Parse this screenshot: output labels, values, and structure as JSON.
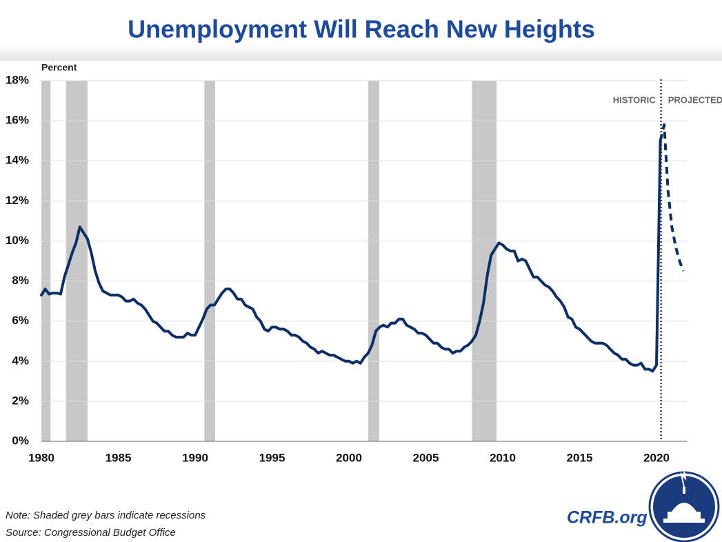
{
  "chart_data": {
    "type": "line",
    "title": "Unemployment Will Reach New Heights",
    "y_label": "Percent",
    "note": "Note: Shaded grey bars indicate recessions",
    "source": "Source: Congressional Budget Office",
    "brand": "CRFB.org",
    "xlim": [
      1980,
      2022
    ],
    "xticks": [
      1980,
      1985,
      1990,
      1995,
      2000,
      2005,
      2010,
      2015,
      2020
    ],
    "ylim": [
      0,
      18
    ],
    "yticks": [
      {
        "value": 0,
        "label": "0%"
      },
      {
        "value": 2,
        "label": "2%"
      },
      {
        "value": 4,
        "label": "4%"
      },
      {
        "value": 6,
        "label": "6%"
      },
      {
        "value": 8,
        "label": "8%"
      },
      {
        "value": 10,
        "label": "10%"
      },
      {
        "value": 12,
        "label": "12%"
      },
      {
        "value": 14,
        "label": "14%"
      },
      {
        "value": 16,
        "label": "16%"
      },
      {
        "value": 18,
        "label": "18%"
      }
    ],
    "grid": true,
    "divider": 2020.3,
    "recession_color": "#c8c8c8",
    "recessions": [
      [
        1980.0,
        1980.6
      ],
      [
        1981.6,
        1983.0
      ],
      [
        1990.6,
        1991.3
      ],
      [
        2001.25,
        2001.97
      ],
      [
        2008.0,
        2009.6
      ]
    ],
    "series": [
      {
        "name": "HISTORIC",
        "color": "#0b2f66",
        "dashed": false,
        "x": [
          1980,
          1980.25,
          1980.5,
          1980.75,
          1981,
          1981.25,
          1981.5,
          1981.75,
          1982,
          1982.25,
          1982.5,
          1982.75,
          1983,
          1983.25,
          1983.5,
          1983.75,
          1984,
          1984.25,
          1984.5,
          1984.75,
          1985,
          1985.25,
          1985.5,
          1985.75,
          1986,
          1986.25,
          1986.5,
          1986.75,
          1987,
          1987.25,
          1987.5,
          1987.75,
          1988,
          1988.25,
          1988.5,
          1988.75,
          1989,
          1989.25,
          1989.5,
          1989.75,
          1990,
          1990.25,
          1990.5,
          1990.75,
          1991,
          1991.25,
          1991.5,
          1991.75,
          1992,
          1992.25,
          1992.5,
          1992.75,
          1993,
          1993.25,
          1993.5,
          1993.75,
          1994,
          1994.25,
          1994.5,
          1994.75,
          1995,
          1995.25,
          1995.5,
          1995.75,
          1996,
          1996.25,
          1996.5,
          1996.75,
          1997,
          1997.25,
          1997.5,
          1997.75,
          1998,
          1998.25,
          1998.5,
          1998.75,
          1999,
          1999.25,
          1999.5,
          1999.75,
          2000,
          2000.25,
          2000.5,
          2000.75,
          2001,
          2001.25,
          2001.5,
          2001.75,
          2002,
          2002.25,
          2002.5,
          2002.75,
          2003,
          2003.25,
          2003.5,
          2003.75,
          2004,
          2004.25,
          2004.5,
          2004.75,
          2005,
          2005.25,
          2005.5,
          2005.75,
          2006,
          2006.25,
          2006.5,
          2006.75,
          2007,
          2007.25,
          2007.5,
          2007.75,
          2008,
          2008.25,
          2008.5,
          2008.75,
          2009,
          2009.25,
          2009.5,
          2009.75,
          2010,
          2010.25,
          2010.5,
          2010.75,
          2011,
          2011.25,
          2011.5,
          2011.75,
          2012,
          2012.25,
          2012.5,
          2012.75,
          2013,
          2013.25,
          2013.5,
          2013.75,
          2014,
          2014.25,
          2014.5,
          2014.75,
          2015,
          2015.25,
          2015.5,
          2015.75,
          2016,
          2016.25,
          2016.5,
          2016.75,
          2017,
          2017.25,
          2017.5,
          2017.75,
          2018,
          2018.25,
          2018.5,
          2018.75,
          2019,
          2019.25,
          2019.5,
          2019.75,
          2020,
          2020.25
        ],
        "values": [
          7.3,
          7.6,
          7.35,
          7.4,
          7.4,
          7.35,
          8.2,
          8.8,
          9.4,
          9.9,
          10.7,
          10.4,
          10.1,
          9.4,
          8.5,
          7.9,
          7.5,
          7.4,
          7.3,
          7.3,
          7.3,
          7.2,
          7.0,
          7.0,
          7.1,
          6.9,
          6.8,
          6.6,
          6.3,
          6.0,
          5.9,
          5.7,
          5.5,
          5.5,
          5.3,
          5.2,
          5.2,
          5.2,
          5.4,
          5.3,
          5.3,
          5.7,
          6.1,
          6.6,
          6.8,
          6.8,
          7.1,
          7.4,
          7.6,
          7.6,
          7.4,
          7.1,
          7.1,
          6.8,
          6.7,
          6.6,
          6.2,
          6.0,
          5.6,
          5.5,
          5.7,
          5.7,
          5.6,
          5.6,
          5.5,
          5.3,
          5.3,
          5.2,
          5.0,
          4.9,
          4.7,
          4.6,
          4.4,
          4.5,
          4.4,
          4.3,
          4.3,
          4.2,
          4.1,
          4.0,
          4.0,
          3.9,
          4.0,
          3.9,
          4.2,
          4.4,
          4.8,
          5.5,
          5.7,
          5.8,
          5.7,
          5.9,
          5.9,
          6.1,
          6.1,
          5.8,
          5.7,
          5.6,
          5.4,
          5.4,
          5.3,
          5.1,
          4.9,
          4.9,
          4.7,
          4.6,
          4.6,
          4.4,
          4.5,
          4.5,
          4.7,
          4.8,
          5.0,
          5.3,
          6.0,
          6.9,
          8.3,
          9.3,
          9.6,
          9.9,
          9.8,
          9.6,
          9.5,
          9.5,
          9.0,
          9.1,
          9.0,
          8.6,
          8.2,
          8.2,
          8.0,
          7.8,
          7.7,
          7.5,
          7.2,
          7.0,
          6.7,
          6.2,
          6.1,
          5.7,
          5.6,
          5.4,
          5.2,
          5.0,
          4.9,
          4.9,
          4.9,
          4.8,
          4.6,
          4.4,
          4.3,
          4.1,
          4.1,
          3.9,
          3.8,
          3.8,
          3.9,
          3.6,
          3.6,
          3.5,
          3.8,
          15.0
        ]
      },
      {
        "name": "PROJECTED",
        "color": "#0b2f66",
        "dashed": true,
        "x": [
          2020.25,
          2020.5,
          2020.75,
          2021,
          2021.25,
          2021.5,
          2021.75
        ],
        "values": [
          15.0,
          15.8,
          12.5,
          10.7,
          9.7,
          9.0,
          8.5
        ]
      }
    ]
  }
}
